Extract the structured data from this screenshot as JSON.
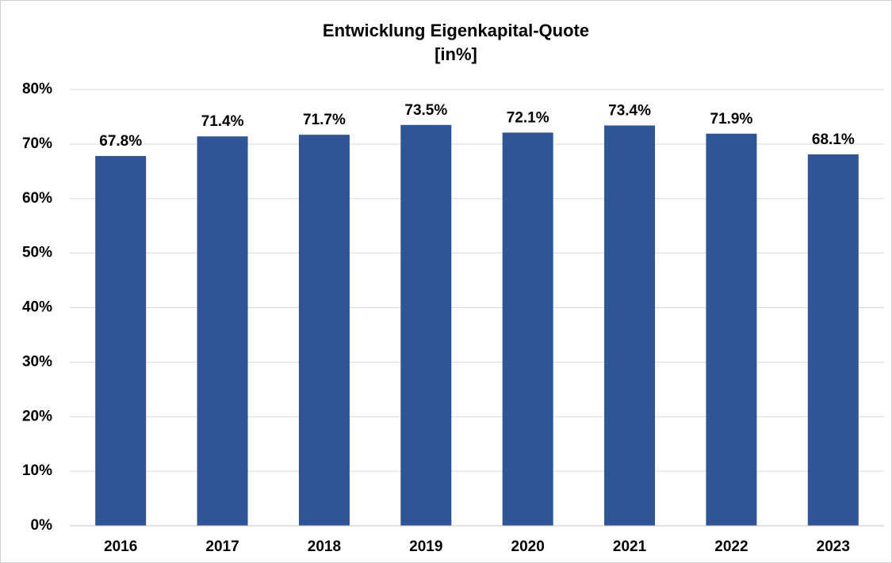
{
  "chart_data": {
    "type": "bar",
    "title": "Entwicklung Eigenkapital-Quote",
    "subtitle": "[in%]",
    "categories": [
      "2016",
      "2017",
      "2018",
      "2019",
      "2020",
      "2021",
      "2022",
      "2023"
    ],
    "values": [
      67.8,
      71.4,
      71.7,
      73.5,
      72.1,
      73.4,
      71.9,
      68.1
    ],
    "value_labels": [
      "67.8%",
      "71.4%",
      "71.7%",
      "73.5%",
      "72.1%",
      "73.4%",
      "71.9%",
      "68.1%"
    ],
    "color": "#2f5597",
    "ylim": [
      0,
      80
    ],
    "yticks": [
      {
        "value": 0,
        "label": "0%"
      },
      {
        "value": 10,
        "label": "10%"
      },
      {
        "value": 20,
        "label": "20%"
      },
      {
        "value": 30,
        "label": "30%"
      },
      {
        "value": 40,
        "label": "40%"
      },
      {
        "value": 50,
        "label": "50%"
      },
      {
        "value": 60,
        "label": "60%"
      },
      {
        "value": 70,
        "label": "70%"
      },
      {
        "value": 80,
        "label": "80%"
      }
    ],
    "grid": true
  }
}
